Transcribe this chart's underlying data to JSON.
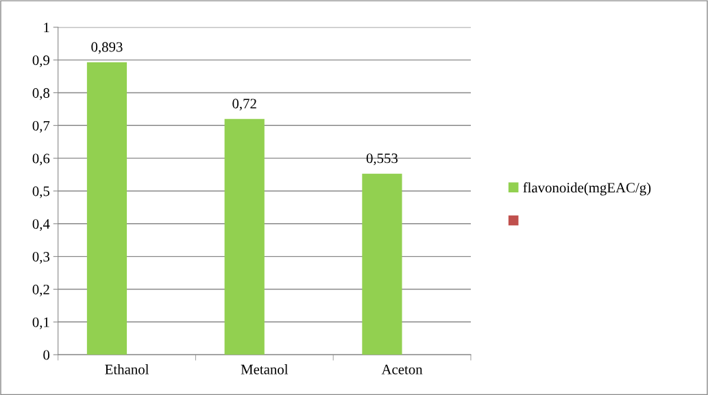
{
  "chart_data": {
    "type": "bar",
    "categories": [
      "Ethanol",
      "Metanol",
      "Aceton"
    ],
    "series": [
      {
        "name": "flavonoide(mgEAC/g)",
        "color": "#92d050",
        "values": [
          0.893,
          0.72,
          0.553
        ],
        "value_labels": [
          "0,893",
          "0,72",
          "0,553"
        ]
      },
      {
        "color": "#c0504d",
        "values": [
          null,
          null,
          null
        ]
      }
    ],
    "ylim": [
      0,
      1
    ],
    "yticks": [
      0,
      {
        "value": 0.1,
        "label": "0,1"
      },
      {
        "value": 0.2,
        "label": "0,2"
      },
      {
        "value": 0.3,
        "label": "0,3"
      },
      {
        "value": 0.4,
        "label": "0,4"
      },
      {
        "value": 0.5,
        "label": "0,5"
      },
      {
        "value": 0.6,
        "label": "0,6"
      },
      {
        "value": 0.7,
        "label": "0,7"
      },
      {
        "value": 0.8,
        "label": "0,8"
      },
      {
        "value": 0.9,
        "label": "0,9"
      },
      1
    ],
    "grid": "y",
    "legend": "right"
  }
}
